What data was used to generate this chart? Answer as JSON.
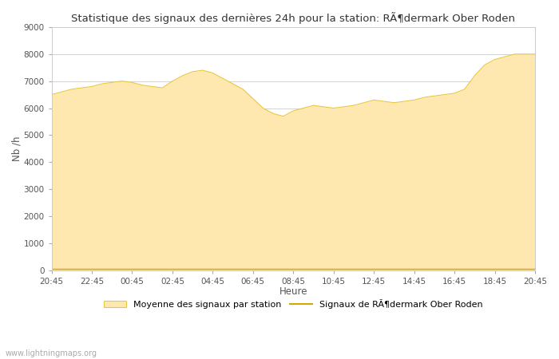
{
  "title": "Statistique des signaux des dernières 24h pour la station: RÃ¶dermark Ober Roden",
  "xlabel": "Heure",
  "ylabel": "Nb /h",
  "ylim": [
    0,
    9000
  ],
  "yticks": [
    0,
    1000,
    2000,
    3000,
    4000,
    5000,
    6000,
    7000,
    8000,
    9000
  ],
  "xtick_labels": [
    "20:45",
    "22:45",
    "00:45",
    "02:45",
    "04:45",
    "06:45",
    "08:45",
    "10:45",
    "12:45",
    "14:45",
    "16:45",
    "18:45",
    "20:45"
  ],
  "fill_color": "#FFE8B0",
  "fill_edge_color": "#E8C840",
  "line_color": "#D4A800",
  "background_color": "#ffffff",
  "grid_color": "#cccccc",
  "watermark": "www.lightningmaps.org",
  "legend_fill_label": "Moyenne des signaux par station",
  "legend_line_label": "Signaux de RÃ¶dermark Ober Roden",
  "x_values": [
    0,
    1,
    2,
    3,
    4,
    5,
    6,
    7,
    8,
    9,
    10,
    11,
    12,
    13,
    14,
    15,
    16,
    17,
    18,
    19,
    20,
    21,
    22,
    23,
    24,
    25,
    26,
    27,
    28,
    29,
    30,
    31,
    32,
    33,
    34,
    35,
    36,
    37,
    38,
    39,
    40,
    41,
    42,
    43,
    44,
    45,
    46,
    47,
    48
  ],
  "y_fill": [
    6500,
    6600,
    6700,
    6750,
    6800,
    6900,
    6950,
    7000,
    6950,
    6850,
    6800,
    6750,
    7000,
    7200,
    7350,
    7400,
    7300,
    7100,
    6900,
    6700,
    6350,
    6000,
    5800,
    5700,
    5900,
    6000,
    6100,
    6050,
    6000,
    6050,
    6100,
    6200,
    6300,
    6250,
    6200,
    6250,
    6300,
    6400,
    6450,
    6500,
    6550,
    6700,
    7200,
    7600,
    7800,
    7900,
    8000,
    8000,
    8000
  ],
  "y_line": [
    50,
    50,
    50,
    50,
    50,
    50,
    50,
    50,
    50,
    50,
    50,
    50,
    50,
    50,
    50,
    50,
    50,
    50,
    50,
    50,
    50,
    50,
    50,
    50,
    50,
    50,
    50,
    50,
    50,
    50,
    50,
    50,
    50,
    50,
    50,
    50,
    50,
    50,
    50,
    50,
    50,
    50,
    50,
    50,
    50,
    50,
    50,
    50,
    50
  ]
}
